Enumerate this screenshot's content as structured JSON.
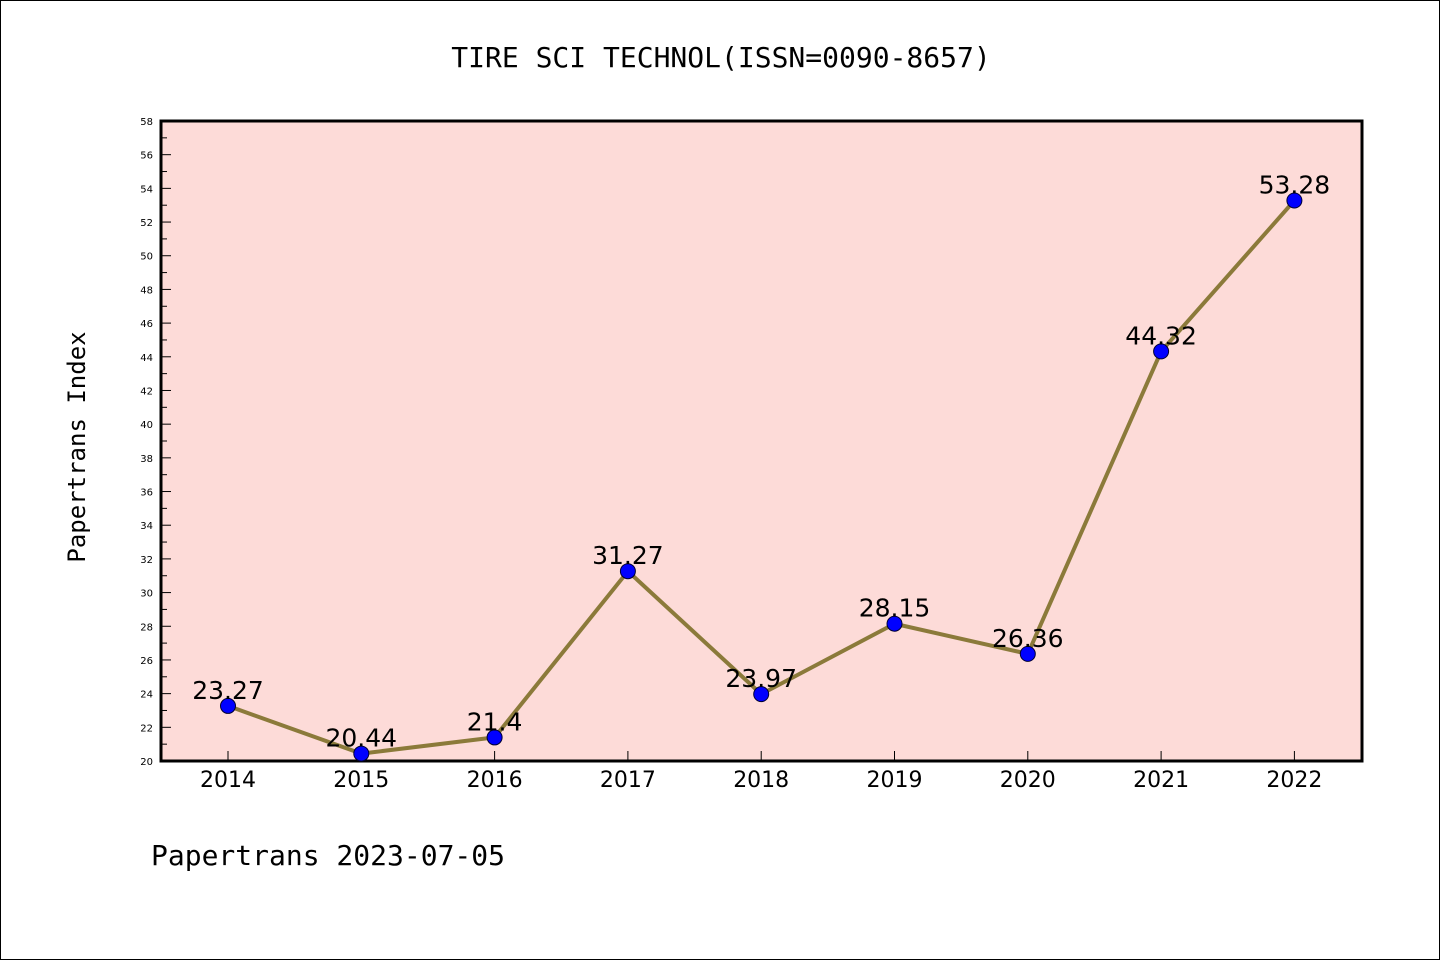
{
  "chart_data": {
    "type": "line",
    "title": "TIRE SCI TECHNOL(ISSN=0090-8657)",
    "xlabel": "",
    "ylabel": "Papertrans Index",
    "footer": "Papertrans 2023-07-05",
    "categories": [
      "2014",
      "2015",
      "2016",
      "2017",
      "2018",
      "2019",
      "2020",
      "2021",
      "2022"
    ],
    "values": [
      23.27,
      20.44,
      21.4,
      31.27,
      23.97,
      28.15,
      26.36,
      44.32,
      53.28
    ],
    "data_labels": [
      "23.27",
      "20.44",
      "21.4",
      "31.27",
      "23.97",
      "28.15",
      "26.36",
      "44.32",
      "53.28"
    ],
    "ylim": [
      20,
      58
    ],
    "y_ticks": [
      "20",
      "22",
      "24",
      "26",
      "28",
      "30",
      "32",
      "34",
      "36",
      "38",
      "40",
      "42",
      "44",
      "46",
      "48",
      "50",
      "52",
      "54",
      "56",
      "58"
    ],
    "grid": false,
    "colors": {
      "plot_background": "#fddbd8",
      "line": "#8b7a3a",
      "marker": "#0000ff"
    }
  }
}
